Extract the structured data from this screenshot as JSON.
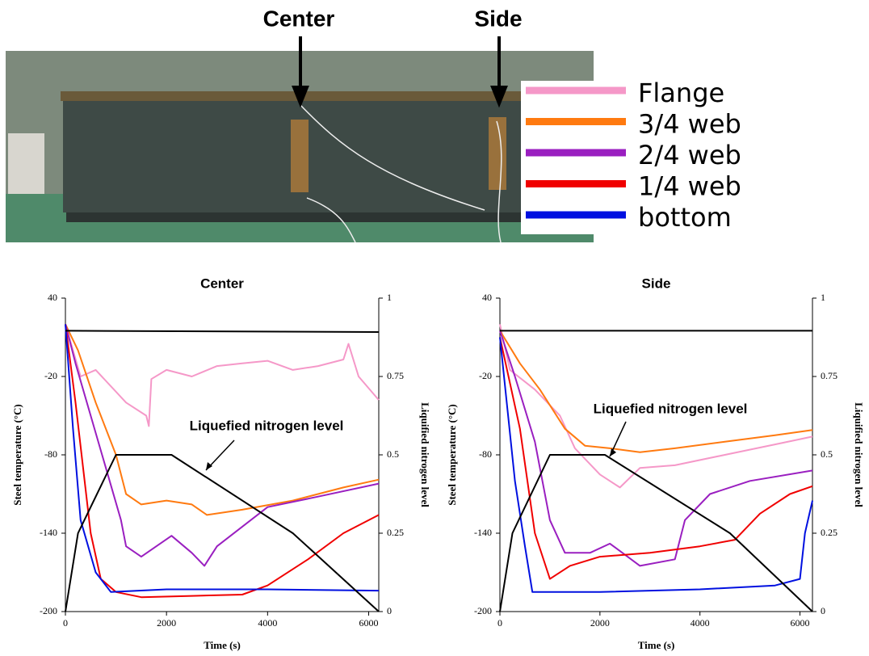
{
  "photo": {
    "labels": [
      "Center",
      "Side"
    ]
  },
  "chart_data": [
    {
      "type": "line",
      "title": "Center",
      "xlabel": "Time (s)",
      "ylabel": "Steel temperature (°C)",
      "y2label": "Liquified nitrogen level",
      "xlim": [
        0,
        6200
      ],
      "xticks": [
        0,
        2000,
        4000,
        6000
      ],
      "ylim": [
        -200,
        40
      ],
      "yticks": [
        -200,
        -140,
        -80,
        -20,
        40
      ],
      "y2lim": [
        0,
        1
      ],
      "y2ticks": [
        0,
        0.25,
        0.5,
        0.75,
        1
      ],
      "series": [
        {
          "name": "Flange",
          "color": "#f598c8",
          "x": [
            0,
            300,
            600,
            1200,
            1600,
            1650,
            1700,
            2000,
            2500,
            3000,
            3500,
            4000,
            4500,
            5000,
            5500,
            5600,
            5800,
            6200
          ],
          "values": [
            20,
            -20,
            -15,
            -40,
            -50,
            -58,
            -22,
            -15,
            -20,
            -12,
            -10,
            -8,
            -15,
            -12,
            -7,
            5,
            -20,
            -38
          ]
        },
        {
          "name": "3/4 web",
          "color": "#ff7a10",
          "x": [
            0,
            250,
            600,
            1000,
            1200,
            1500,
            2000,
            2500,
            2800,
            3500,
            4500,
            5500,
            6200
          ],
          "values": [
            20,
            0,
            -40,
            -80,
            -110,
            -118,
            -115,
            -118,
            -126,
            -122,
            -115,
            -105,
            -99
          ]
        },
        {
          "name": "2/4 web",
          "color": "#9a1fc0",
          "x": [
            0,
            200,
            500,
            800,
            1100,
            1200,
            1500,
            2100,
            2500,
            2750,
            3000,
            3500,
            4000,
            5000,
            6200
          ],
          "values": [
            20,
            -10,
            -50,
            -90,
            -130,
            -150,
            -158,
            -142,
            -155,
            -165,
            -150,
            -135,
            -120,
            -112,
            -102
          ]
        },
        {
          "name": "1/4 web",
          "color": "#f00000",
          "x": [
            0,
            200,
            500,
            700,
            1000,
            1500,
            2500,
            3500,
            4000,
            4800,
            5500,
            6200
          ],
          "values": [
            20,
            -40,
            -140,
            -175,
            -185,
            -189,
            -188,
            -187,
            -180,
            -160,
            -140,
            -126
          ]
        },
        {
          "name": "bottom",
          "color": "#0010e0",
          "x": [
            0,
            150,
            300,
            600,
            900,
            2000,
            4000,
            6200
          ],
          "values": [
            20,
            -60,
            -130,
            -170,
            -185,
            -183,
            -183,
            -184
          ]
        },
        {
          "color": "#000000",
          "x": [
            0,
            6200
          ],
          "values": [
            15,
            14
          ]
        },
        {
          "name": "Liquefied nitrogen level",
          "color": "#000000",
          "axis": "y2",
          "x": [
            0,
            250,
            1000,
            2100,
            4500,
            6200
          ],
          "values": [
            0,
            0.25,
            0.5,
            0.5,
            0.25,
            0
          ]
        }
      ]
    },
    {
      "type": "line",
      "title": "Side",
      "xlabel": "Time (s)",
      "ylabel": "Steel temperature (°C)",
      "y2label": "Liquified nitrogen level",
      "xlim": [
        0,
        6250
      ],
      "xticks": [
        0,
        2000,
        4000,
        6000
      ],
      "ylim": [
        -200,
        40
      ],
      "yticks": [
        -200,
        -140,
        -80,
        -20,
        40
      ],
      "y2lim": [
        0,
        1
      ],
      "y2ticks": [
        0,
        0.25,
        0.5,
        0.75,
        1
      ],
      "series": [
        {
          "name": "Flange",
          "color": "#f598c8",
          "x": [
            0,
            200,
            700,
            1200,
            1500,
            2000,
            2400,
            2800,
            3500,
            4500,
            5500,
            6250
          ],
          "values": [
            20,
            -15,
            -30,
            -50,
            -75,
            -95,
            -105,
            -90,
            -88,
            -80,
            -72,
            -66
          ]
        },
        {
          "name": "3/4 web",
          "color": "#ff7a10",
          "x": [
            0,
            400,
            800,
            1300,
            1700,
            2200,
            2800,
            3500,
            4500,
            5500,
            6250
          ],
          "values": [
            15,
            -10,
            -30,
            -60,
            -73,
            -75,
            -78,
            -75,
            -70,
            -65,
            -61
          ]
        },
        {
          "name": "2/4 web",
          "color": "#9a1fc0",
          "x": [
            0,
            300,
            700,
            1000,
            1300,
            1800,
            2200,
            2800,
            3500,
            3700,
            4200,
            5000,
            6250
          ],
          "values": [
            15,
            -20,
            -70,
            -130,
            -155,
            -155,
            -148,
            -165,
            -160,
            -130,
            -110,
            -100,
            -92
          ]
        },
        {
          "name": "1/4 web",
          "color": "#f00000",
          "x": [
            0,
            400,
            700,
            1000,
            1400,
            2000,
            3000,
            4000,
            4700,
            5200,
            5800,
            6250
          ],
          "values": [
            10,
            -60,
            -140,
            -175,
            -165,
            -158,
            -155,
            -150,
            -145,
            -125,
            -110,
            -104
          ]
        },
        {
          "name": "bottom",
          "color": "#0010e0",
          "x": [
            0,
            300,
            500,
            650,
            2000,
            4000,
            5500,
            6000,
            6100,
            6250
          ],
          "values": [
            10,
            -100,
            -150,
            -185,
            -185,
            -183,
            -180,
            -175,
            -140,
            -115
          ]
        },
        {
          "color": "#000000",
          "x": [
            0,
            6250
          ],
          "values": [
            15,
            15
          ]
        },
        {
          "name": "Liquefied nitrogen level",
          "color": "#000000",
          "axis": "y2",
          "x": [
            0,
            250,
            1000,
            2100,
            4600,
            6250
          ],
          "values": [
            0,
            0.25,
            0.5,
            0.5,
            0.25,
            0
          ]
        }
      ]
    }
  ]
}
